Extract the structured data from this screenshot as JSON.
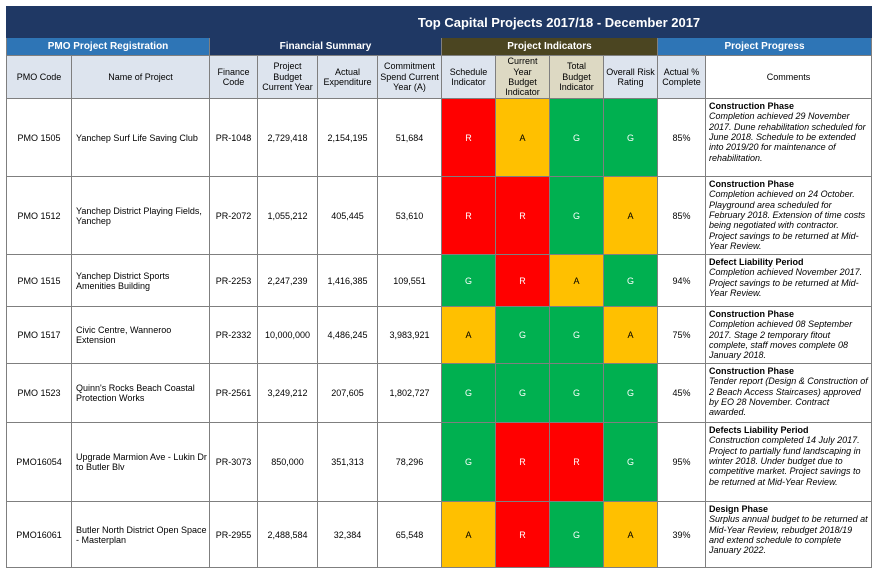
{
  "title": "Top Capital Projects 2017/18 - December 2017",
  "groups": {
    "pmo": "PMO Project Registration",
    "financial": "Financial Summary",
    "indicators": "Project Indicators",
    "progress": "Project Progress"
  },
  "columns": {
    "pmo_code": "PMO Code",
    "project_name": "Name of Project",
    "finance_code": "Finance Code",
    "budget": "Project Budget Current Year",
    "actual": "Actual Expenditure",
    "commitment": "Commitment Spend Current Year (A)",
    "schedule": "Schedule Indicator",
    "current_budget": "Current Year Budget Indicator",
    "total_budget": "Total Budget Indicator",
    "risk": "Overall Risk Rating",
    "complete": "Actual % Complete",
    "comments": "Comments"
  },
  "colors": {
    "R": "#ff0000",
    "A": "#ffc000",
    "G": "#00b050",
    "title_bg": "#1f3864",
    "group_blue": "#2e75b6"
  },
  "rows": [
    {
      "pmo": "PMO 1505",
      "name": "Yanchep Surf Life Saving Club",
      "finance": "PR-1048",
      "budget": "2,729,418",
      "actual": "2,154,195",
      "commitment": "51,684",
      "schedule": "R",
      "current_budget": "A",
      "total_budget": "G",
      "risk": "G",
      "complete": "85%",
      "phase": "Construction Phase",
      "comment": "Completion achieved 29 November 2017. Dune rehabilitation scheduled for June 2018. Schedule to be extended into 2019/20 for maintenance of rehabilitation."
    },
    {
      "pmo": "PMO 1512",
      "name": "Yanchep District Playing Fields, Yanchep",
      "finance": "PR-2072",
      "budget": "1,055,212",
      "actual": "405,445",
      "commitment": "53,610",
      "schedule": "R",
      "current_budget": "R",
      "total_budget": "G",
      "risk": "A",
      "complete": "85%",
      "phase": "Construction Phase",
      "comment": "Completion achieved on 24 October. Playground area scheduled for February 2018. Extension of time costs being negotiated with contractor. Project savings to be returned at Mid-Year Review."
    },
    {
      "pmo": "PMO 1515",
      "name": "Yanchep District Sports Amenities Building",
      "finance": "PR-2253",
      "budget": "2,247,239",
      "actual": "1,416,385",
      "commitment": "109,551",
      "schedule": "G",
      "current_budget": "R",
      "total_budget": "A",
      "risk": "G",
      "complete": "94%",
      "phase": "Defect Liability Period",
      "comment": "Completion achieved November 2017. Project savings to be returned at Mid-Year Review."
    },
    {
      "pmo": "PMO 1517",
      "name": "Civic Centre, Wanneroo Extension",
      "finance": "PR-2332",
      "budget": "10,000,000",
      "actual": "4,486,245",
      "commitment": "3,983,921",
      "schedule": "A",
      "current_budget": "G",
      "total_budget": "G",
      "risk": "A",
      "complete": "75%",
      "phase": "Construction Phase",
      "comment": "Completion achieved 08 September 2017. Stage 2 temporary fitout complete, staff moves complete 08 January 2018."
    },
    {
      "pmo": "PMO 1523",
      "name": "Quinn's Rocks Beach Coastal Protection Works",
      "finance": "PR-2561",
      "budget": "3,249,212",
      "actual": "207,605",
      "commitment": "1,802,727",
      "schedule": "G",
      "current_budget": "G",
      "total_budget": "G",
      "risk": "G",
      "complete": "45%",
      "phase": "Construction Phase",
      "comment": "Tender report (Design & Construction of 2 Beach Access Staircases) approved by EO 28 November. Contract awarded."
    },
    {
      "pmo": "PMO16054",
      "name": "Upgrade Marmion Ave - Lukin Dr to Butler Blv",
      "finance": "PR-3073",
      "budget": "850,000",
      "actual": "351,313",
      "commitment": "78,296",
      "schedule": "G",
      "current_budget": "R",
      "total_budget": "R",
      "risk": "G",
      "complete": "95%",
      "phase": "Defects Liability Period",
      "comment": "Construction completed 14 July 2017. Project to partially fund landscaping in winter 2018. Under budget due to competitive market. Project savings to be returned at Mid-Year Review."
    },
    {
      "pmo": "PMO16061",
      "name": "Butler North District Open Space - Masterplan",
      "finance": "PR-2955",
      "budget": "2,488,584",
      "actual": "32,384",
      "commitment": "65,548",
      "schedule": "A",
      "current_budget": "R",
      "total_budget": "G",
      "risk": "A",
      "complete": "39%",
      "phase": "Design Phase",
      "comment": "Surplus annual budget to be returned at Mid-Year Review, rebudget 2018/19 and extend schedule to complete January 2022."
    }
  ]
}
